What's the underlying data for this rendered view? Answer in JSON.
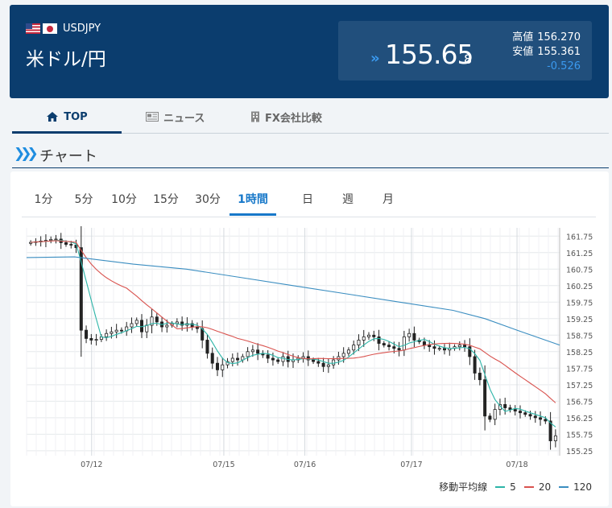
{
  "header": {
    "pair_code": "USDJPY",
    "pair_name": "米ドル/円",
    "bid_main": "155.65",
    "bid_small": "8",
    "high_label": "高値",
    "high_value": "156.270",
    "low_label": "安値",
    "low_value": "155.361",
    "change": "-0.526",
    "colors": {
      "background": "#0b3d6e",
      "rate_box": "#214f7c",
      "down": "#3a9af0"
    }
  },
  "nav": {
    "tabs": [
      {
        "label": "TOP",
        "icon": "home-icon",
        "active": true
      },
      {
        "label": "ニュース",
        "icon": "news-icon",
        "active": false
      },
      {
        "label": "FX会社比較",
        "icon": "building-icon",
        "active": false
      }
    ]
  },
  "section": {
    "title": "チャート",
    "icon": "chevron-right-icon"
  },
  "periods": {
    "tabs": [
      "1分",
      "5分",
      "10分",
      "15分",
      "30分",
      "1時間",
      "日",
      "週",
      "月"
    ],
    "active": "1時間"
  },
  "chart_data": {
    "type": "candlestick",
    "interval": "1時間",
    "yticks": [
      "161.75",
      "161.25",
      "160.75",
      "160.25",
      "159.75",
      "159.25",
      "158.75",
      "158.25",
      "157.75",
      "157.25",
      "156.75",
      "156.25",
      "155.75",
      "155.25"
    ],
    "ylim": [
      155.1,
      162.0
    ],
    "xticks": [
      {
        "label": "07/12",
        "pos": 0.122
      },
      {
        "label": "07/15",
        "pos": 0.37
      },
      {
        "label": "07/16",
        "pos": 0.522
      },
      {
        "label": "07/17",
        "pos": 0.722
      },
      {
        "label": "07/18",
        "pos": 0.92
      }
    ],
    "close_series": [
      161.56,
      161.58,
      161.6,
      161.62,
      161.65,
      161.66,
      161.55,
      161.5,
      161.48,
      161.4,
      158.9,
      158.65,
      158.6,
      158.62,
      158.7,
      158.8,
      158.85,
      158.9,
      158.88,
      159.0,
      159.1,
      159.2,
      158.85,
      159.05,
      159.3,
      159.15,
      159.0,
      159.05,
      159.1,
      159.15,
      159.05,
      159.1,
      159.0,
      158.95,
      158.6,
      158.2,
      157.9,
      157.7,
      157.85,
      157.95,
      158.05,
      158.0,
      158.1,
      158.25,
      158.3,
      158.2,
      158.15,
      158.05,
      158.0,
      157.95,
      158.1,
      157.95,
      158.0,
      158.05,
      158.1,
      158.0,
      157.95,
      157.9,
      157.8,
      157.85,
      158.0,
      158.1,
      158.2,
      158.3,
      158.45,
      158.6,
      158.7,
      158.75,
      158.7,
      158.5,
      158.45,
      158.4,
      158.35,
      158.3,
      158.7,
      158.8,
      158.6,
      158.55,
      158.45,
      158.4,
      158.35,
      158.35,
      158.3,
      158.35,
      158.4,
      158.45,
      158.4,
      158.1,
      157.6,
      157.4,
      156.3,
      156.2,
      156.5,
      156.65,
      156.55,
      156.5,
      156.45,
      156.4,
      156.35,
      156.3,
      156.25,
      156.2,
      156.15,
      155.55,
      155.7
    ],
    "highs_lows_note": "",
    "moving_averages": [
      {
        "name": "5",
        "color": "#2cb5a8"
      },
      {
        "name": "20",
        "color": "#d9534f"
      },
      {
        "name": "120",
        "color": "#3a8dc0"
      }
    ],
    "ma120_points": [
      [
        0,
        161.1
      ],
      [
        0.09,
        161.12
      ],
      [
        0.2,
        160.9
      ],
      [
        0.3,
        160.75
      ],
      [
        0.4,
        160.5
      ],
      [
        0.5,
        160.25
      ],
      [
        0.6,
        160.0
      ],
      [
        0.7,
        159.75
      ],
      [
        0.8,
        159.5
      ],
      [
        0.86,
        159.25
      ],
      [
        0.92,
        158.9
      ],
      [
        1.0,
        158.45
      ]
    ]
  },
  "legend": {
    "label": "移動平均線",
    "items": [
      "5",
      "20",
      "120"
    ]
  }
}
